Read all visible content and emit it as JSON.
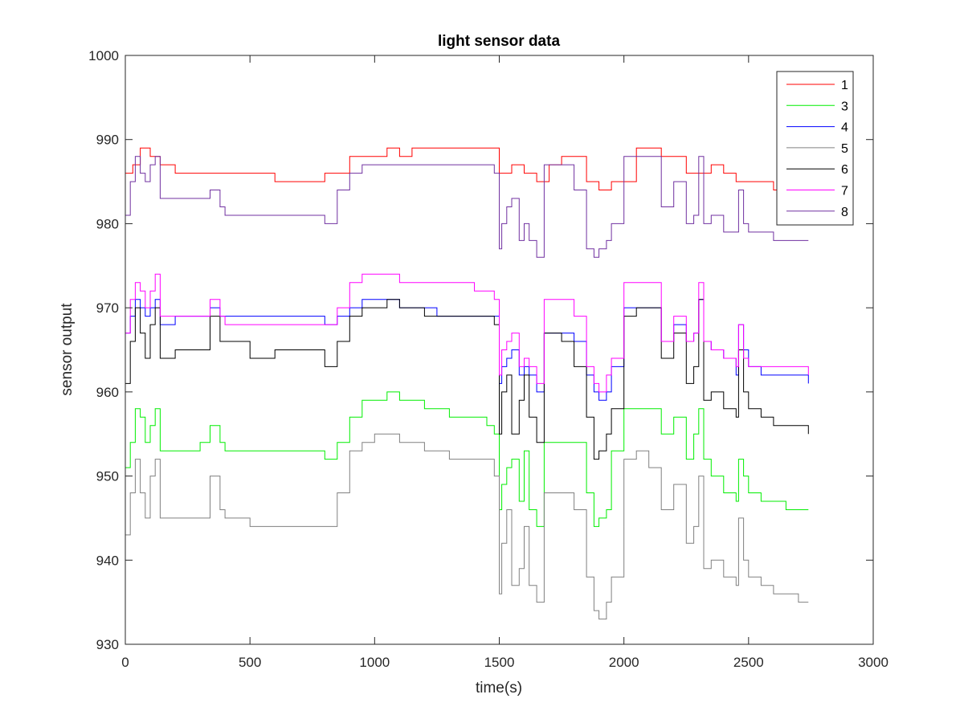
{
  "chart_data": {
    "type": "line",
    "title": "light sensor data",
    "xlabel": "time(s)",
    "ylabel": "sensor output",
    "xlim": [
      0,
      3000
    ],
    "ylim": [
      930,
      1000
    ],
    "xticks": [
      0,
      500,
      1000,
      1500,
      2000,
      2500,
      3000
    ],
    "yticks": [
      930,
      940,
      950,
      960,
      970,
      980,
      990,
      1000
    ],
    "grid": false,
    "legend_position": "top-right",
    "series": [
      {
        "name": "1",
        "color": "#ff0000",
        "x": [
          0,
          30,
          60,
          100,
          140,
          200,
          300,
          400,
          500,
          600,
          700,
          800,
          850,
          900,
          950,
          1000,
          1050,
          1100,
          1150,
          1200,
          1250,
          1300,
          1350,
          1400,
          1450,
          1480,
          1500,
          1550,
          1600,
          1650,
          1700,
          1750,
          1800,
          1850,
          1900,
          1950,
          2000,
          2050,
          2100,
          2150,
          2200,
          2250,
          2300,
          2350,
          2400,
          2450,
          2500,
          2550,
          2600,
          2650,
          2700,
          2740
        ],
        "y": [
          986,
          987,
          989,
          988,
          987,
          986,
          986,
          986,
          986,
          985,
          985,
          986,
          986,
          988,
          988,
          988,
          989,
          988,
          989,
          989,
          989,
          989,
          989,
          989,
          989,
          989,
          986,
          987,
          986,
          985,
          987,
          988,
          988,
          985,
          984,
          985,
          985,
          989,
          989,
          988,
          988,
          986,
          986,
          987,
          986,
          985,
          985,
          985,
          984,
          984,
          985,
          985
        ]
      },
      {
        "name": "3",
        "color": "#00ee00",
        "x": [
          0,
          20,
          40,
          60,
          80,
          100,
          120,
          140,
          200,
          300,
          340,
          380,
          400,
          500,
          600,
          700,
          800,
          850,
          900,
          950,
          1000,
          1050,
          1100,
          1150,
          1200,
          1250,
          1300,
          1350,
          1400,
          1450,
          1480,
          1500,
          1510,
          1530,
          1550,
          1580,
          1600,
          1620,
          1650,
          1680,
          1700,
          1750,
          1800,
          1850,
          1880,
          1900,
          1930,
          1950,
          2000,
          2050,
          2100,
          2150,
          2200,
          2250,
          2280,
          2300,
          2320,
          2350,
          2400,
          2450,
          2460,
          2480,
          2500,
          2550,
          2600,
          2650,
          2700,
          2740
        ],
        "y": [
          951,
          954,
          958,
          957,
          954,
          956,
          958,
          953,
          953,
          954,
          956,
          954,
          953,
          953,
          953,
          953,
          952,
          954,
          957,
          959,
          959,
          960,
          959,
          959,
          958,
          958,
          957,
          957,
          957,
          956,
          955,
          946,
          949,
          951,
          952,
          947,
          953,
          946,
          944,
          954,
          954,
          954,
          954,
          948,
          944,
          945,
          946,
          953,
          958,
          958,
          958,
          955,
          957,
          952,
          955,
          958,
          952,
          950,
          948,
          947,
          952,
          950,
          948,
          947,
          947,
          946,
          946,
          946
        ]
      },
      {
        "name": "4",
        "color": "#0000ff",
        "x": [
          0,
          20,
          40,
          60,
          80,
          100,
          120,
          140,
          200,
          300,
          340,
          380,
          400,
          500,
          600,
          700,
          800,
          850,
          900,
          950,
          1000,
          1050,
          1100,
          1150,
          1200,
          1250,
          1300,
          1350,
          1400,
          1450,
          1480,
          1500,
          1510,
          1530,
          1550,
          1580,
          1600,
          1620,
          1650,
          1680,
          1700,
          1750,
          1800,
          1850,
          1880,
          1900,
          1930,
          1950,
          2000,
          2050,
          2100,
          2150,
          2200,
          2250,
          2280,
          2300,
          2320,
          2350,
          2400,
          2450,
          2460,
          2480,
          2500,
          2550,
          2600,
          2650,
          2700,
          2740
        ],
        "y": [
          967,
          969,
          971,
          970,
          969,
          970,
          971,
          968,
          969,
          969,
          970,
          969,
          969,
          969,
          969,
          969,
          968,
          969,
          970,
          971,
          971,
          971,
          970,
          970,
          970,
          969,
          969,
          969,
          969,
          969,
          969,
          961,
          963,
          964,
          965,
          962,
          963,
          962,
          960,
          967,
          967,
          967,
          966,
          962,
          960,
          959,
          960,
          963,
          970,
          970,
          970,
          966,
          968,
          966,
          967,
          971,
          966,
          965,
          964,
          962,
          968,
          965,
          963,
          962,
          962,
          962,
          962,
          961
        ]
      },
      {
        "name": "5",
        "color": "#808080",
        "x": [
          0,
          20,
          40,
          60,
          80,
          100,
          120,
          140,
          200,
          300,
          340,
          380,
          400,
          500,
          600,
          700,
          800,
          850,
          900,
          950,
          1000,
          1050,
          1100,
          1150,
          1200,
          1250,
          1300,
          1350,
          1400,
          1450,
          1480,
          1500,
          1510,
          1530,
          1550,
          1580,
          1600,
          1620,
          1650,
          1680,
          1700,
          1750,
          1800,
          1850,
          1880,
          1900,
          1930,
          1950,
          2000,
          2050,
          2100,
          2150,
          2200,
          2250,
          2280,
          2300,
          2320,
          2350,
          2400,
          2450,
          2460,
          2480,
          2500,
          2550,
          2600,
          2650,
          2700,
          2740
        ],
        "y": [
          943,
          948,
          952,
          948,
          945,
          950,
          952,
          945,
          945,
          945,
          950,
          946,
          945,
          944,
          944,
          944,
          944,
          948,
          953,
          954,
          955,
          955,
          954,
          954,
          953,
          953,
          952,
          952,
          952,
          952,
          950,
          936,
          942,
          946,
          937,
          939,
          944,
          937,
          935,
          948,
          948,
          948,
          946,
          938,
          934,
          933,
          935,
          938,
          952,
          953,
          951,
          946,
          949,
          942,
          944,
          950,
          939,
          940,
          938,
          937,
          945,
          940,
          938,
          937,
          936,
          936,
          935,
          935
        ]
      },
      {
        "name": "6",
        "color": "#000000",
        "x": [
          0,
          20,
          40,
          60,
          80,
          100,
          120,
          140,
          200,
          300,
          340,
          380,
          400,
          500,
          600,
          700,
          800,
          850,
          900,
          950,
          1000,
          1050,
          1100,
          1150,
          1200,
          1250,
          1300,
          1350,
          1400,
          1450,
          1480,
          1500,
          1510,
          1530,
          1550,
          1580,
          1600,
          1620,
          1650,
          1680,
          1700,
          1750,
          1800,
          1850,
          1880,
          1900,
          1930,
          1950,
          2000,
          2050,
          2100,
          2150,
          2200,
          2250,
          2280,
          2300,
          2320,
          2350,
          2400,
          2450,
          2460,
          2480,
          2500,
          2550,
          2600,
          2650,
          2700,
          2740
        ],
        "y": [
          961,
          966,
          970,
          967,
          964,
          968,
          970,
          964,
          965,
          965,
          969,
          966,
          966,
          964,
          965,
          965,
          963,
          966,
          969,
          970,
          970,
          971,
          970,
          970,
          969,
          969,
          969,
          969,
          969,
          969,
          968,
          955,
          960,
          962,
          955,
          959,
          962,
          957,
          954,
          967,
          967,
          966,
          963,
          957,
          952,
          953,
          955,
          958,
          969,
          970,
          970,
          964,
          967,
          961,
          963,
          971,
          959,
          960,
          958,
          957,
          965,
          960,
          958,
          957,
          956,
          956,
          956,
          955
        ]
      },
      {
        "name": "7",
        "color": "#ff00ff",
        "x": [
          0,
          20,
          40,
          60,
          80,
          100,
          120,
          140,
          200,
          300,
          340,
          380,
          400,
          500,
          600,
          700,
          800,
          850,
          900,
          950,
          1000,
          1050,
          1100,
          1150,
          1200,
          1250,
          1300,
          1350,
          1400,
          1450,
          1480,
          1500,
          1510,
          1530,
          1550,
          1580,
          1600,
          1620,
          1650,
          1680,
          1700,
          1750,
          1800,
          1850,
          1880,
          1900,
          1930,
          1950,
          2000,
          2050,
          2100,
          2150,
          2200,
          2250,
          2280,
          2300,
          2320,
          2350,
          2400,
          2450,
          2460,
          2480,
          2500,
          2550,
          2600,
          2650,
          2700,
          2740
        ],
        "y": [
          967,
          971,
          973,
          972,
          970,
          972,
          974,
          969,
          969,
          969,
          971,
          969,
          968,
          968,
          968,
          968,
          968,
          970,
          973,
          974,
          974,
          974,
          973,
          973,
          973,
          973,
          973,
          973,
          972,
          972,
          971,
          962,
          965,
          966,
          967,
          963,
          964,
          963,
          961,
          971,
          971,
          971,
          969,
          963,
          961,
          960,
          962,
          964,
          973,
          973,
          973,
          966,
          969,
          966,
          967,
          973,
          966,
          965,
          964,
          963,
          968,
          964,
          963,
          963,
          963,
          963,
          963,
          962
        ]
      },
      {
        "name": "8",
        "color": "#7030a0",
        "x": [
          0,
          20,
          40,
          60,
          80,
          100,
          120,
          140,
          200,
          300,
          340,
          380,
          400,
          500,
          600,
          700,
          800,
          850,
          900,
          950,
          1000,
          1050,
          1100,
          1150,
          1200,
          1250,
          1300,
          1350,
          1400,
          1450,
          1480,
          1500,
          1510,
          1530,
          1550,
          1580,
          1600,
          1620,
          1650,
          1680,
          1700,
          1750,
          1800,
          1850,
          1880,
          1900,
          1930,
          1950,
          2000,
          2050,
          2100,
          2150,
          2200,
          2250,
          2280,
          2300,
          2320,
          2350,
          2400,
          2450,
          2460,
          2480,
          2500,
          2550,
          2600,
          2650,
          2700,
          2740
        ],
        "y": [
          981,
          985,
          988,
          986,
          985,
          987,
          988,
          983,
          983,
          983,
          984,
          982,
          981,
          981,
          981,
          981,
          980,
          984,
          986,
          987,
          987,
          987,
          987,
          987,
          987,
          987,
          987,
          987,
          987,
          987,
          986,
          977,
          980,
          982,
          983,
          978,
          980,
          978,
          976,
          987,
          987,
          987,
          984,
          977,
          976,
          977,
          978,
          980,
          988,
          988,
          988,
          982,
          985,
          980,
          981,
          988,
          980,
          981,
          979,
          979,
          984,
          980,
          979,
          979,
          978,
          978,
          978,
          978
        ]
      }
    ]
  }
}
